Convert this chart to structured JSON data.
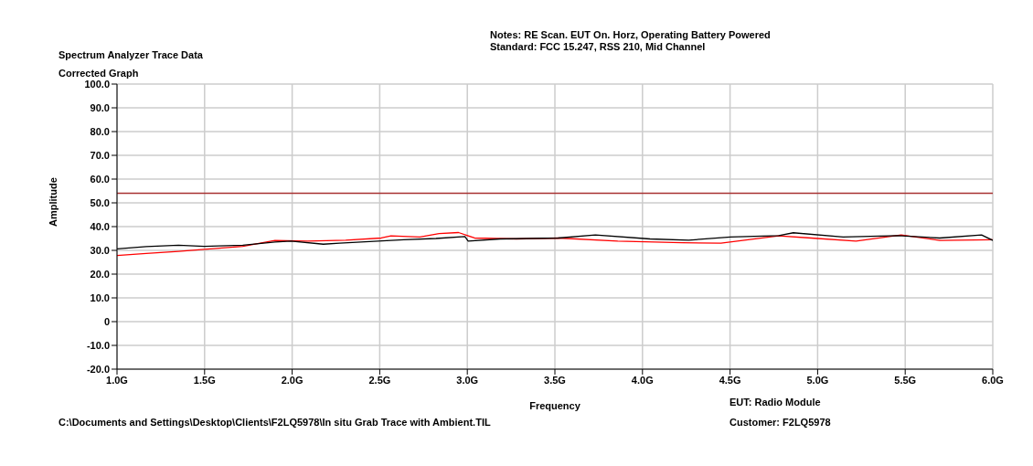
{
  "chart_data": {
    "type": "line",
    "title": "Spectrum Analyzer Trace Data",
    "subtitle": "Corrected Graph",
    "xlabel": "Frequency",
    "ylabel": "Amplitude",
    "annotations": [
      "Notes:  RE Scan.  EUT On. Horz, Operating Battery Powered",
      "Standard: FCC 15.247, RSS 210, Mid Channel",
      "C:\\Documents and Settings\\Desktop\\Clients\\F2LQ5978\\In situ Grab Trace with Ambient.TIL",
      "EUT: Radio Module",
      "Customer: F2LQ5978"
    ],
    "xlim": [
      1.0,
      6.0
    ],
    "xticks": [
      {
        "value": 1.0,
        "label": "1.0G"
      },
      {
        "value": 1.5,
        "label": "1.5G"
      },
      {
        "value": 2.0,
        "label": "2.0G"
      },
      {
        "value": 2.5,
        "label": "2.5G"
      },
      {
        "value": 3.0,
        "label": "3.0G"
      },
      {
        "value": 3.5,
        "label": "3.5G"
      },
      {
        "value": 4.0,
        "label": "4.0G"
      },
      {
        "value": 4.5,
        "label": "4.5G"
      },
      {
        "value": 5.0,
        "label": "5.0G"
      },
      {
        "value": 5.5,
        "label": "5.5G"
      },
      {
        "value": 6.0,
        "label": "6.0G"
      }
    ],
    "ylim": [
      -20,
      100
    ],
    "yticks": [
      {
        "value": -20,
        "label": "-20.0"
      },
      {
        "value": -10,
        "label": "-10.0"
      },
      0,
      {
        "value": 10,
        "label": "10.0"
      },
      {
        "value": 20,
        "label": "20.0"
      },
      {
        "value": 30,
        "label": "30.0"
      },
      {
        "value": 40,
        "label": "40.0"
      },
      {
        "value": 50,
        "label": "50.0"
      },
      {
        "value": 60,
        "label": "60.0"
      },
      {
        "value": 70,
        "label": "70.0"
      },
      {
        "value": 80,
        "label": "80.0"
      },
      {
        "value": 90,
        "label": "90.0"
      },
      {
        "value": 100,
        "label": "100.0"
      }
    ],
    "grid": true,
    "marker": "none",
    "line_style": "solid",
    "ref_lines": [
      {
        "axis": "y",
        "value": 54,
        "color": "#a83232"
      }
    ],
    "series": [
      {
        "color": "#ff0000",
        "x": [
          1.0,
          1.167,
          1.351,
          1.498,
          1.718,
          1.902,
          2.086,
          2.306,
          2.509,
          2.564,
          2.729,
          2.839,
          2.95,
          3.041,
          3.28,
          3.519,
          3.859,
          4.227,
          4.448,
          4.778,
          4.962,
          5.219,
          5.477,
          5.697,
          6.0
        ],
        "values": [
          27.8,
          28.7,
          29.6,
          30.4,
          31.7,
          34.2,
          33.9,
          34.3,
          35.2,
          36.1,
          35.6,
          37.1,
          37.5,
          35.2,
          34.8,
          35.2,
          33.9,
          33.2,
          33.0,
          36.1,
          35.2,
          33.9,
          36.5,
          34.2,
          34.5
        ]
      },
      {
        "color": "#000000",
        "x": [
          1.0,
          1.167,
          1.351,
          1.498,
          1.718,
          1.902,
          1.994,
          2.178,
          2.27,
          2.49,
          2.637,
          2.821,
          2.986,
          3.005,
          3.188,
          3.519,
          3.731,
          4.043,
          4.264,
          4.503,
          4.778,
          4.861,
          5.146,
          5.458,
          5.697,
          5.936,
          6.0
        ],
        "values": [
          30.6,
          31.6,
          32.2,
          31.7,
          32.2,
          33.5,
          33.9,
          32.6,
          33.0,
          33.9,
          34.5,
          35.0,
          35.8,
          33.9,
          34.8,
          35.2,
          36.5,
          34.8,
          34.3,
          35.6,
          36.2,
          37.4,
          35.6,
          36.2,
          35.2,
          36.5,
          34.2
        ]
      }
    ]
  }
}
